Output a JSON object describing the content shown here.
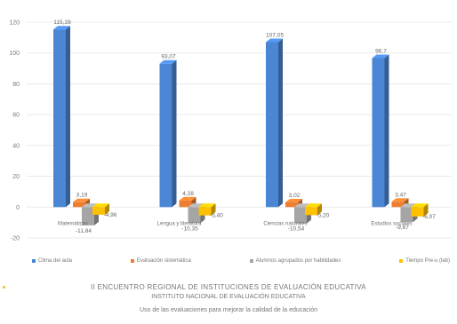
{
  "chart_data": {
    "type": "bar",
    "categories": [
      "Matemáticas",
      "Lengua y literatura",
      "Ciencias naturales",
      "Estudios sociales"
    ],
    "series": [
      {
        "name": "Clima del aula",
        "color": "#4a86d4",
        "values": [
          115.28,
          93.07,
          107.05,
          96.7
        ],
        "labels": [
          "115,28",
          "93,07",
          "107,05",
          "96,7"
        ]
      },
      {
        "name": "Evaluación sistemática",
        "color": "#ed7d31",
        "values": [
          3.19,
          4.28,
          3.02,
          3.47
        ],
        "labels": [
          "3,19",
          "4,28",
          "3,02",
          "3,47"
        ]
      },
      {
        "name": "Alumnos agrupados por habilidades",
        "color": "#a5a5a5",
        "values": [
          -11.84,
          -10.35,
          -10.54,
          -9.67
        ],
        "labels": [
          "-11,84",
          "-10,35",
          "-10,54",
          "-9,67"
        ]
      },
      {
        "name": "Tiempo Pre-u (lab)",
        "color": "#ffc000",
        "values": [
          -4.96,
          -5.4,
          -5.2,
          -6.07
        ],
        "labels": [
          "-4,96",
          "-5,40",
          "-5,20",
          "-6,07"
        ]
      }
    ],
    "y_ticks": [
      -20,
      0,
      20,
      40,
      60,
      80,
      100,
      120
    ],
    "ylim": [
      -20,
      120
    ],
    "grid": true,
    "legend_position": "bottom"
  },
  "captions": {
    "line1": "II ENCUENTRO REGIONAL DE INSTITUCIONES DE EVALUACIÓN EDUCATIVA",
    "line2": "INSTITUTO NACIONAL DE EVALUACIÓN EDUCATIVA",
    "line3": "Uso de las evaluaciones para mejorar la calidad de la educación"
  }
}
